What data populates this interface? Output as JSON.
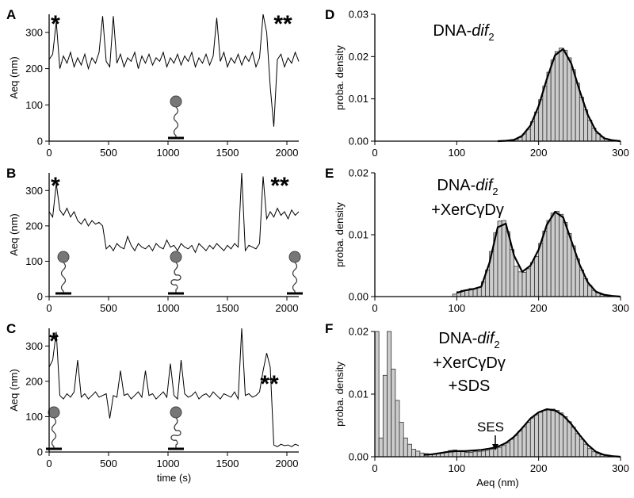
{
  "chart_data": [
    {
      "type": "line",
      "panel": "A",
      "ylabel": "Aeq (nm)",
      "annotations": [
        "*",
        "**"
      ],
      "x": [
        0,
        30,
        60,
        90,
        120,
        150,
        180,
        210,
        240,
        270,
        300,
        330,
        360,
        390,
        420,
        450,
        480,
        510,
        540,
        570,
        600,
        630,
        660,
        690,
        720,
        750,
        780,
        810,
        840,
        870,
        900,
        930,
        960,
        990,
        1020,
        1050,
        1080,
        1110,
        1140,
        1170,
        1200,
        1230,
        1260,
        1290,
        1320,
        1350,
        1380,
        1410,
        1440,
        1470,
        1500,
        1530,
        1560,
        1590,
        1620,
        1650,
        1680,
        1710,
        1740,
        1770,
        1800,
        1830,
        1860,
        1890,
        1920,
        1950,
        1980,
        2010,
        2040,
        2070,
        2100
      ],
      "series": [
        {
          "color": "#000000",
          "values": [
            225,
            240,
            330,
            200,
            235,
            215,
            245,
            205,
            230,
            210,
            240,
            200,
            230,
            215,
            245,
            345,
            220,
            205,
            345,
            215,
            240,
            205,
            230,
            220,
            245,
            200,
            235,
            215,
            240,
            210,
            230,
            220,
            245,
            205,
            230,
            215,
            240,
            210,
            235,
            220,
            245,
            205,
            230,
            215,
            240,
            210,
            235,
            340,
            220,
            245,
            205,
            230,
            215,
            240,
            210,
            235,
            220,
            245,
            205,
            230,
            350,
            300,
            150,
            40,
            225,
            240,
            205,
            230,
            215,
            245,
            220
          ]
        }
      ],
      "xlim": [
        0,
        2100
      ],
      "xticks": [
        0,
        500,
        1000,
        1500,
        2000
      ],
      "ylim": [
        0,
        350
      ],
      "yticks": [
        0,
        100,
        200,
        300
      ]
    },
    {
      "type": "line",
      "panel": "B",
      "ylabel": "Aeq (nm)",
      "annotations": [
        "*",
        "**"
      ],
      "x": [
        0,
        30,
        60,
        90,
        120,
        150,
        180,
        210,
        240,
        270,
        300,
        330,
        360,
        390,
        420,
        450,
        480,
        510,
        540,
        570,
        600,
        630,
        660,
        690,
        720,
        750,
        780,
        810,
        840,
        870,
        900,
        930,
        960,
        990,
        1020,
        1050,
        1080,
        1110,
        1140,
        1170,
        1200,
        1230,
        1260,
        1290,
        1320,
        1350,
        1380,
        1410,
        1440,
        1470,
        1500,
        1530,
        1560,
        1590,
        1620,
        1650,
        1680,
        1710,
        1740,
        1770,
        1800,
        1830,
        1860,
        1890,
        1920,
        1950,
        1980,
        2010,
        2040,
        2070,
        2100
      ],
      "series": [
        {
          "color": "#000000",
          "values": [
            240,
            225,
            320,
            245,
            230,
            250,
            225,
            240,
            215,
            205,
            220,
            200,
            215,
            205,
            210,
            200,
            135,
            145,
            130,
            150,
            140,
            135,
            170,
            145,
            130,
            150,
            140,
            135,
            145,
            130,
            150,
            140,
            135,
            160,
            140,
            145,
            130,
            150,
            140,
            135,
            145,
            125,
            150,
            140,
            130,
            145,
            135,
            150,
            140,
            130,
            145,
            135,
            150,
            140,
            350,
            130,
            145,
            140,
            135,
            150,
            340,
            220,
            240,
            225,
            250,
            230,
            240,
            220,
            245,
            230,
            240
          ]
        }
      ],
      "xlim": [
        0,
        2100
      ],
      "xticks": [
        0,
        500,
        1000,
        1500,
        2000
      ],
      "ylim": [
        0,
        350
      ],
      "yticks": [
        0,
        100,
        200,
        300
      ]
    },
    {
      "type": "line",
      "panel": "C",
      "ylabel": "Aeq (nm)",
      "xlabel": "time (s)",
      "annotations": [
        "*",
        "**"
      ],
      "x": [
        0,
        30,
        60,
        90,
        120,
        150,
        180,
        210,
        240,
        270,
        300,
        330,
        360,
        390,
        420,
        450,
        480,
        510,
        540,
        570,
        600,
        630,
        660,
        690,
        720,
        750,
        780,
        810,
        840,
        870,
        900,
        930,
        960,
        990,
        1020,
        1050,
        1080,
        1110,
        1140,
        1170,
        1200,
        1230,
        1260,
        1290,
        1320,
        1350,
        1380,
        1410,
        1440,
        1470,
        1500,
        1530,
        1560,
        1590,
        1620,
        1650,
        1680,
        1710,
        1740,
        1770,
        1800,
        1830,
        1860,
        1890,
        1920,
        1950,
        1980,
        2010,
        2040,
        2070,
        2100
      ],
      "series": [
        {
          "color": "#000000",
          "values": [
            240,
            260,
            340,
            160,
            150,
            165,
            155,
            170,
            260,
            155,
            165,
            150,
            160,
            170,
            155,
            160,
            165,
            95,
            160,
            155,
            230,
            160,
            165,
            150,
            160,
            170,
            155,
            230,
            160,
            165,
            150,
            160,
            170,
            155,
            250,
            160,
            150,
            260,
            165,
            155,
            160,
            170,
            150,
            160,
            165,
            155,
            170,
            160,
            150,
            165,
            160,
            155,
            170,
            150,
            350,
            160,
            165,
            155,
            160,
            170,
            230,
            280,
            240,
            20,
            15,
            22,
            18,
            20,
            15,
            22,
            18
          ]
        }
      ],
      "xlim": [
        0,
        2100
      ],
      "xticks": [
        0,
        500,
        1000,
        1500,
        2000
      ],
      "ylim": [
        0,
        350
      ],
      "yticks": [
        0,
        100,
        200,
        300
      ]
    },
    {
      "type": "histogram",
      "panel": "D",
      "ylabel": "proba. density",
      "color": "#cccccc",
      "annotation": {
        "prefix": "DNA-",
        "italic": "dif",
        "sub": "2",
        "lines": []
      },
      "bins": [
        150,
        155,
        160,
        165,
        170,
        175,
        180,
        185,
        190,
        195,
        200,
        205,
        210,
        215,
        220,
        225,
        230,
        235,
        240,
        245,
        250,
        255,
        260,
        265,
        270,
        275,
        280,
        285,
        290,
        295,
        300
      ],
      "counts": [
        0,
        0,
        0.0001,
        0.0002,
        0.0005,
        0.0009,
        0.0017,
        0.0028,
        0.0046,
        0.0069,
        0.0098,
        0.013,
        0.0163,
        0.0192,
        0.0212,
        0.022,
        0.0215,
        0.0197,
        0.0169,
        0.0137,
        0.0104,
        0.0074,
        0.005,
        0.0031,
        0.0018,
        0.001,
        0.0005,
        0.0003,
        0.0001,
        0
      ],
      "fit": {
        "x": [
          150,
          160,
          170,
          180,
          190,
          200,
          210,
          220,
          230,
          240,
          250,
          260,
          270,
          280,
          290,
          300
        ],
        "values": [
          0,
          0.0001,
          0.0003,
          0.0013,
          0.0037,
          0.0083,
          0.0147,
          0.0203,
          0.0218,
          0.0183,
          0.012,
          0.0062,
          0.0024,
          0.0007,
          0.0002,
          0
        ]
      },
      "xlim": [
        0,
        300
      ],
      "xticks": [
        0,
        100,
        200,
        300
      ],
      "ylim": [
        0,
        0.03
      ],
      "yticks": [
        {
          "value": 0,
          "label": "0.00"
        },
        {
          "value": 0.01,
          "label": "0.01"
        },
        {
          "value": 0.02,
          "label": "0.02"
        },
        {
          "value": 0.03,
          "label": "0.03"
        }
      ]
    },
    {
      "type": "histogram",
      "panel": "E",
      "ylabel": "proba. density",
      "color": "#cccccc",
      "annotation": {
        "prefix": "DNA-",
        "italic": "dif",
        "sub": "2",
        "lines": [
          "+XerCγDγ"
        ]
      },
      "bins": [
        95,
        100,
        105,
        110,
        115,
        120,
        125,
        130,
        135,
        140,
        145,
        150,
        155,
        160,
        165,
        170,
        175,
        180,
        185,
        190,
        195,
        200,
        205,
        210,
        215,
        220,
        225,
        230,
        235,
        240,
        245,
        250,
        255,
        260,
        265,
        270,
        275,
        280,
        285,
        290,
        295,
        300
      ],
      "counts": [
        0.0004,
        0.0008,
        0.001,
        0.001,
        0.0013,
        0.0013,
        0.0015,
        0.0024,
        0.0043,
        0.0073,
        0.0103,
        0.0122,
        0.0123,
        0.0105,
        0.0076,
        0.0049,
        0.004,
        0.0039,
        0.0045,
        0.0055,
        0.0065,
        0.0086,
        0.0106,
        0.0123,
        0.0135,
        0.0138,
        0.0133,
        0.012,
        0.0102,
        0.0082,
        0.0061,
        0.0043,
        0.0029,
        0.0018,
        0.001,
        0.0006,
        0.0003,
        0.0002,
        0.0001,
        0,
        0
      ],
      "fit": {
        "x": [
          100,
          110,
          120,
          130,
          140,
          150,
          160,
          170,
          180,
          190,
          200,
          210,
          220,
          230,
          240,
          250,
          260,
          270,
          280,
          290,
          300
        ],
        "values": [
          0.0006,
          0.001,
          0.0012,
          0.0016,
          0.0055,
          0.0112,
          0.0118,
          0.0066,
          0.004,
          0.005,
          0.0076,
          0.0116,
          0.0137,
          0.0128,
          0.009,
          0.0052,
          0.0023,
          0.0008,
          0.0003,
          0.0001,
          0
        ]
      },
      "xlim": [
        0,
        300
      ],
      "xticks": [
        0,
        100,
        200,
        300
      ],
      "ylim": [
        0,
        0.02
      ],
      "yticks": [
        {
          "value": 0,
          "label": "0.00"
        },
        {
          "value": 0.01,
          "label": "0.01"
        },
        {
          "value": 0.02,
          "label": "0.02"
        }
      ]
    },
    {
      "type": "histogram",
      "panel": "F",
      "ylabel": "proba. density",
      "xlabel": "Aeq (nm)",
      "color": "#cccccc",
      "marker": "SES",
      "annotation": {
        "prefix": "DNA-",
        "italic": "dif",
        "sub": "2",
        "lines": [
          "+XerCγDγ",
          "+SDS"
        ]
      },
      "bins": [
        0,
        5,
        10,
        15,
        20,
        25,
        30,
        35,
        40,
        45,
        50,
        55,
        60,
        65,
        70,
        75,
        80,
        85,
        90,
        95,
        100,
        105,
        110,
        115,
        120,
        125,
        130,
        135,
        140,
        145,
        150,
        155,
        160,
        165,
        170,
        175,
        180,
        185,
        190,
        195,
        200,
        205,
        210,
        215,
        220,
        225,
        230,
        235,
        240,
        245,
        250,
        255,
        260,
        265,
        270,
        275,
        280,
        285,
        290,
        295,
        300
      ],
      "counts": [
        0.02,
        0.003,
        0.013,
        0.02,
        0.014,
        0.009,
        0.0055,
        0.003,
        0.002,
        0.0012,
        0.0009,
        0.0006,
        0.0005,
        0.0004,
        0.0004,
        0.0005,
        0.0006,
        0.0008,
        0.001,
        0.0011,
        0.0009,
        0.0008,
        0.0007,
        0.0007,
        0.0008,
        0.0008,
        0.0009,
        0.001,
        0.0012,
        0.0013,
        0.0015,
        0.0018,
        0.0022,
        0.0028,
        0.0034,
        0.0041,
        0.0048,
        0.0055,
        0.0062,
        0.0067,
        0.0071,
        0.0074,
        0.0075,
        0.0076,
        0.0074,
        0.007,
        0.0064,
        0.0056,
        0.0047,
        0.0037,
        0.0028,
        0.002,
        0.0013,
        0.0008,
        0.0005,
        0.0003,
        0.0002,
        0.0001,
        0,
        0
      ],
      "fit": {
        "x": [
          60,
          70,
          80,
          90,
          100,
          110,
          120,
          130,
          140,
          150,
          160,
          170,
          180,
          190,
          200,
          210,
          220,
          230,
          240,
          250,
          260,
          270,
          280,
          290,
          300
        ],
        "values": [
          0.0003,
          0.0004,
          0.0006,
          0.0008,
          0.0009,
          0.0009,
          0.001,
          0.0011,
          0.0013,
          0.0016,
          0.0022,
          0.0032,
          0.0046,
          0.0061,
          0.0071,
          0.0076,
          0.0074,
          0.0066,
          0.0052,
          0.0035,
          0.0019,
          0.0008,
          0.0003,
          0.0001,
          0
        ]
      },
      "xlim": [
        0,
        300
      ],
      "xticks": [
        0,
        100,
        200,
        300
      ],
      "ylim": [
        0,
        0.02
      ],
      "yticks": [
        {
          "value": 0,
          "label": "0.00"
        },
        {
          "value": 0.01,
          "label": "0.01"
        },
        {
          "value": 0.02,
          "label": "0.02"
        }
      ]
    }
  ]
}
